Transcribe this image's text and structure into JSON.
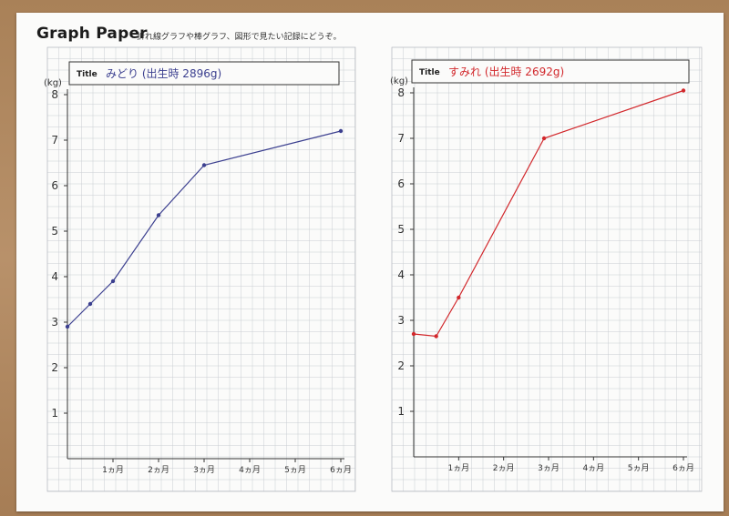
{
  "header": {
    "title": "Graph Paper",
    "subtitle": "折れ線グラフや棒グラフ、図形で見たい記録にどうぞ。"
  },
  "chart_data": [
    {
      "type": "line",
      "title_label": "Title",
      "title": "みどり (出生時 2896g)",
      "ylabel": "(kg)",
      "color": "#3b3f8f",
      "yticks": [
        "1",
        "2",
        "3",
        "4",
        "5",
        "6",
        "7",
        "8"
      ],
      "xticks": [
        "1ヵ月",
        "2ヵ月",
        "3ヵ月",
        "4ヵ月",
        "5ヵ月",
        "6ヵ月"
      ],
      "xlim": [
        0,
        6
      ],
      "ylim": [
        0,
        8
      ],
      "grid": true,
      "x": [
        0,
        0.5,
        1,
        2,
        3,
        6
      ],
      "y": [
        2.9,
        3.4,
        3.9,
        5.35,
        6.45,
        7.2
      ]
    },
    {
      "type": "line",
      "title_label": "Title",
      "title": "すみれ (出生時 2692g)",
      "ylabel": "(kg)",
      "color": "#d2282c",
      "yticks": [
        "1",
        "2",
        "3",
        "4",
        "5",
        "6",
        "7",
        "8"
      ],
      "xticks": [
        "1ヵ月",
        "2ヵ月",
        "3ヵ月",
        "4ヵ月",
        "5ヵ月",
        "6ヵ月"
      ],
      "xlim": [
        0,
        6
      ],
      "ylim": [
        0,
        8
      ],
      "grid": true,
      "x": [
        0,
        0.5,
        1,
        2.9,
        6
      ],
      "y": [
        2.7,
        2.65,
        3.5,
        7.0,
        8.05
      ]
    }
  ]
}
